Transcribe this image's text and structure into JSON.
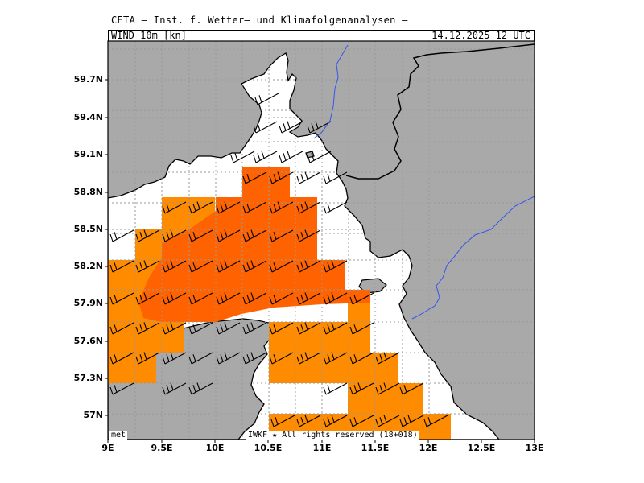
{
  "header": {
    "title": "CETA — Inst. f. Wetter— und Klimafolgenanalysen —",
    "parameter": "WIND_10m_[kn]",
    "valid_time": "14.12.2025  12 UTC"
  },
  "axes": {
    "lat_labels": [
      "59.7N",
      "59.4N",
      "59.1N",
      "58.8N",
      "58.5N",
      "58.2N",
      "57.9N",
      "57.6N",
      "57.3N",
      "57N"
    ],
    "lon_labels": [
      "9E",
      "9.5E",
      "10E",
      "10.5E",
      "11E",
      "11.5E",
      "12E",
      "12.5E",
      "13E"
    ]
  },
  "footer": {
    "left": "met",
    "right": "IWKF ★ All rights reserved (18+018)"
  },
  "colors": {
    "land": "#a9a9a9",
    "sea": "#ffffff",
    "shade_light": "#ff8c00",
    "shade_dark": "#ff6200",
    "rivers": "#3355ee",
    "grid": "#999999"
  }
}
